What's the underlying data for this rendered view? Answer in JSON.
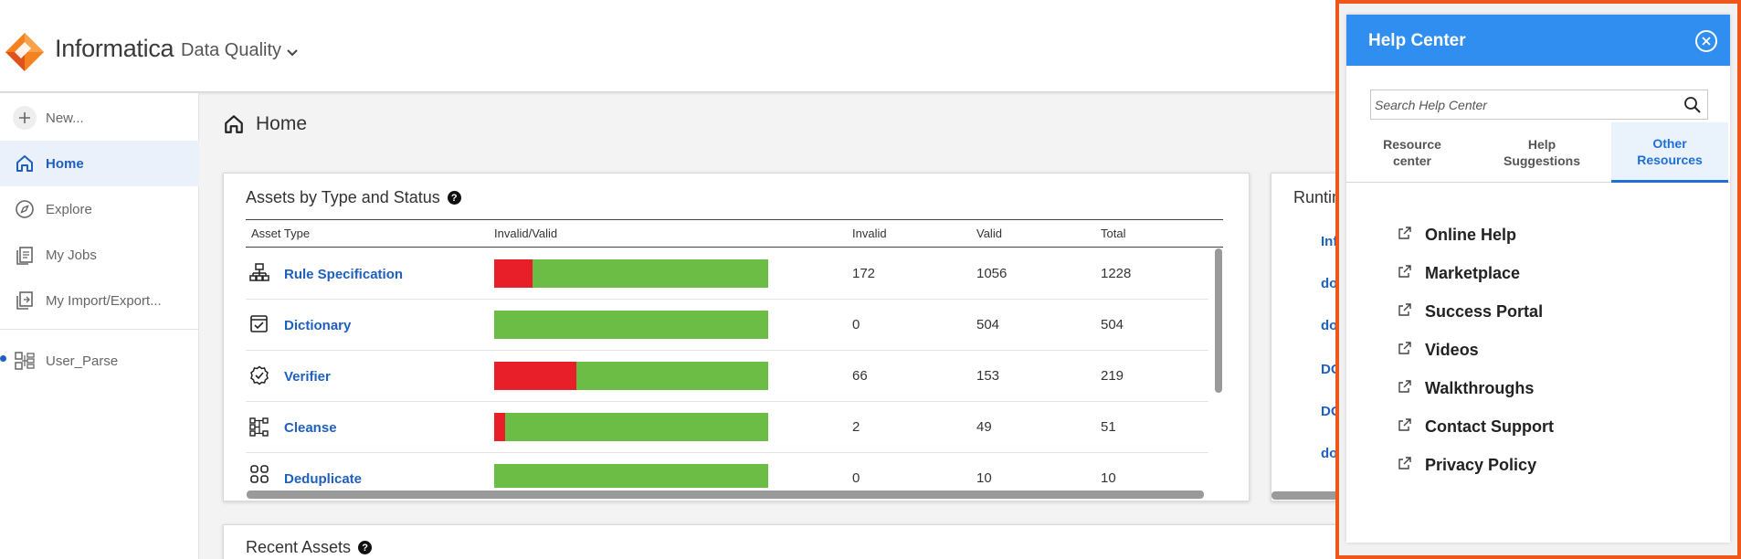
{
  "header": {
    "brand": "Informatica",
    "product": "Data Quality"
  },
  "sidebar": {
    "items": [
      {
        "label": "New...",
        "icon": "plus-icon"
      },
      {
        "label": "Home",
        "icon": "home-icon",
        "active": true
      },
      {
        "label": "Explore",
        "icon": "compass-icon"
      },
      {
        "label": "My Jobs",
        "icon": "jobs-icon"
      },
      {
        "label": "My Import/Export...",
        "icon": "import-export-icon"
      },
      {
        "label": "User_Parse",
        "icon": "parse-asset-icon"
      }
    ]
  },
  "main": {
    "title": "Home",
    "assets_card": {
      "title": "Assets by Type and Status",
      "columns": [
        "Asset Type",
        "Invalid/Valid",
        "Invalid",
        "Valid",
        "Total"
      ],
      "rows": [
        {
          "name": "Rule Specification",
          "icon": "rule-spec-icon",
          "invalid": 172,
          "valid": 1056,
          "total": 1228
        },
        {
          "name": "Dictionary",
          "icon": "dictionary-icon",
          "invalid": 0,
          "valid": 504,
          "total": 504
        },
        {
          "name": "Verifier",
          "icon": "verifier-icon",
          "invalid": 66,
          "valid": 153,
          "total": 219
        },
        {
          "name": "Cleanse",
          "icon": "cleanse-icon",
          "invalid": 2,
          "valid": 49,
          "total": 51
        },
        {
          "name": "Deduplicate",
          "icon": "deduplicate-icon",
          "invalid": 0,
          "valid": 10,
          "total": 10
        }
      ]
    },
    "runtime_card": {
      "title": "Runtim",
      "links": [
        "Info",
        "doc",
        "doc",
        "DOC",
        "DOC",
        "doc"
      ]
    },
    "recent_card": {
      "title": "Recent Assets"
    }
  },
  "help": {
    "title": "Help Center",
    "search_placeholder": "Search Help Center",
    "tabs": [
      {
        "label": "Resource center"
      },
      {
        "label": "Help Suggestions"
      },
      {
        "label": "Other Resources",
        "active": true
      }
    ],
    "resources": [
      "Online Help",
      "Marketplace",
      "Success Portal",
      "Videos",
      "Walkthroughs",
      "Contact Support",
      "Privacy Policy"
    ]
  },
  "colors": {
    "accent": "#1f5fbf",
    "help_header": "#2f8ef0",
    "highlight_border": "#f0561a",
    "valid": "#6cbd45",
    "invalid": "#e81e28"
  }
}
